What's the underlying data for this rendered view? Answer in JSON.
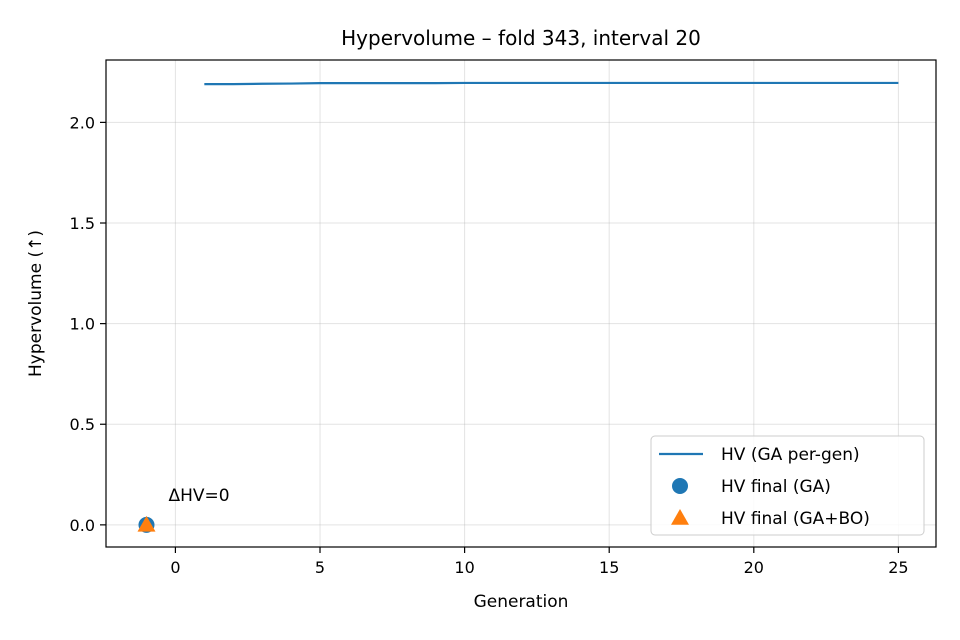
{
  "chart_data": {
    "type": "line",
    "title": "Hypervolume – fold 343, interval 20",
    "xlabel": "Generation",
    "ylabel": "Hypervolume (↑)",
    "xlim": [
      -2.4,
      26.3
    ],
    "ylim": [
      -0.11,
      2.31
    ],
    "xticks": [
      0,
      5,
      10,
      15,
      20,
      25
    ],
    "yticks": [
      0.0,
      0.5,
      1.0,
      1.5,
      2.0
    ],
    "xtick_labels": [
      "0",
      "5",
      "10",
      "15",
      "20",
      "25"
    ],
    "ytick_labels": [
      "0.0",
      "0.5",
      "1.0",
      "1.5",
      "2.0"
    ],
    "grid": true,
    "legend_position": "bottom-right",
    "series": [
      {
        "name": "HV (GA per-gen)",
        "kind": "line",
        "color": "#1f77b4",
        "x": [
          1,
          2,
          3,
          4,
          5,
          6,
          7,
          8,
          9,
          10,
          11,
          12,
          13,
          14,
          15,
          16,
          17,
          18,
          19,
          20,
          21,
          22,
          23,
          24,
          25
        ],
        "y": [
          2.19,
          2.19,
          2.192,
          2.193,
          2.195,
          2.195,
          2.195,
          2.195,
          2.195,
          2.196,
          2.196,
          2.196,
          2.196,
          2.196,
          2.196,
          2.196,
          2.196,
          2.196,
          2.196,
          2.196,
          2.196,
          2.196,
          2.196,
          2.196,
          2.196
        ]
      },
      {
        "name": "HV final (GA)",
        "kind": "scatter",
        "marker": "circle",
        "color": "#1f77b4",
        "x": [
          -1
        ],
        "y": [
          0.0
        ]
      },
      {
        "name": "HV final (GA+BO)",
        "kind": "scatter",
        "marker": "triangle",
        "color": "#ff7f0e",
        "x": [
          -1
        ],
        "y": [
          0.0
        ]
      }
    ],
    "annotations": [
      {
        "text": "ΔHV=0",
        "x": -1,
        "y": 0.0
      }
    ]
  }
}
